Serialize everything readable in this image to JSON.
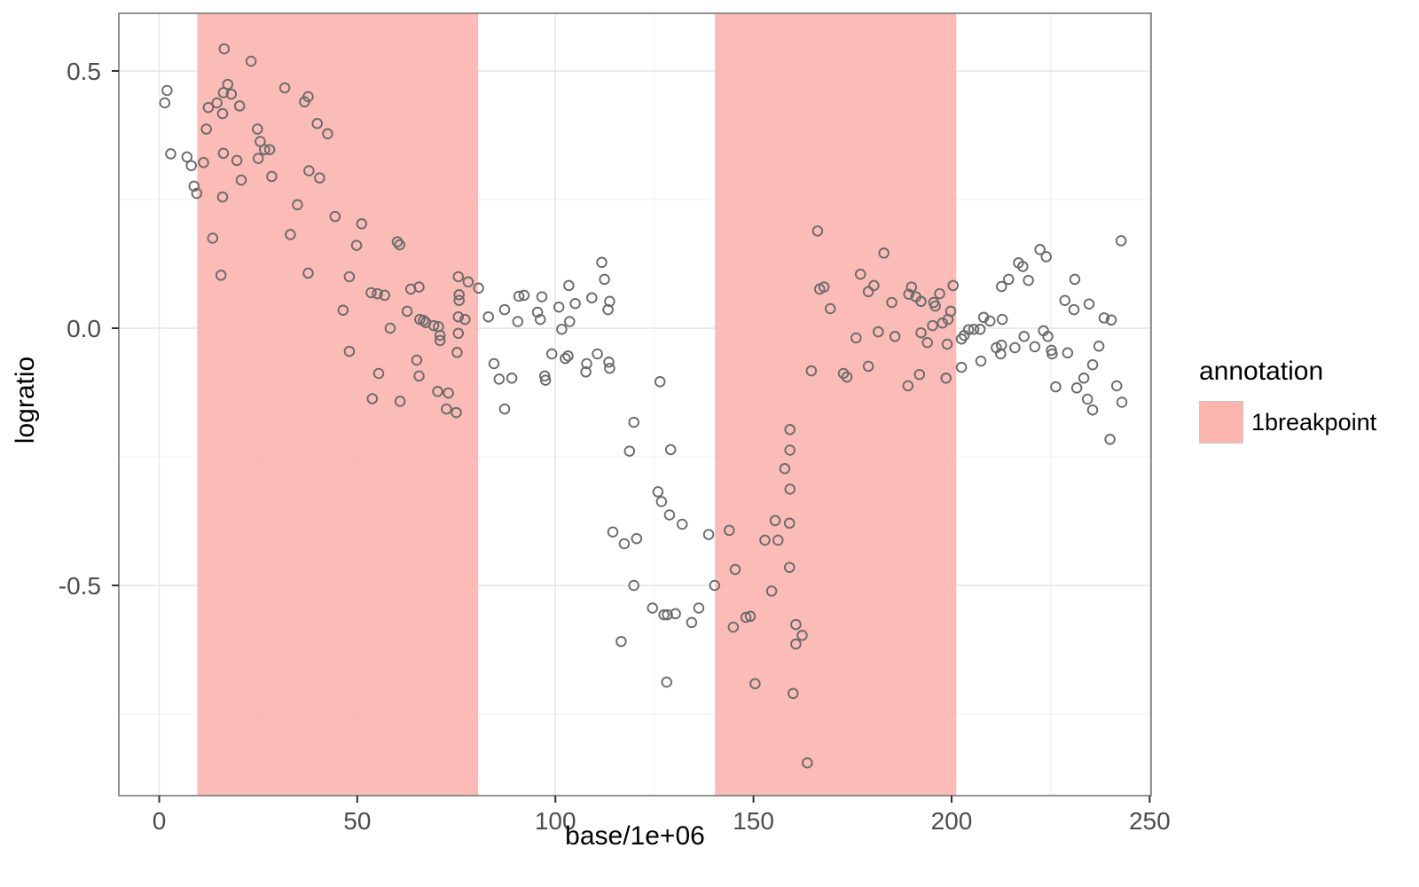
{
  "chart_data": {
    "type": "scatter",
    "title": "",
    "xlabel": "base/1e+06",
    "ylabel": "logratio",
    "xlim": [
      -10.2,
      250.4
    ],
    "ylim": [
      -0.909,
      0.612
    ],
    "grid": "on",
    "x_ticks": [
      {
        "v": 0,
        "label": "0"
      },
      {
        "v": 50,
        "label": "50"
      },
      {
        "v": 100,
        "label": "100"
      },
      {
        "v": 150,
        "label": "150"
      },
      {
        "v": 200,
        "label": "200"
      },
      {
        "v": 250,
        "label": "250"
      }
    ],
    "x_minor_ticks": [
      25,
      75,
      125,
      175,
      225
    ],
    "y_ticks": [
      {
        "v": 0.5,
        "label": "0.5"
      },
      {
        "v": 0.0,
        "label": "0.0"
      },
      {
        "v": -0.5,
        "label": "-0.5"
      }
    ],
    "y_minor_ticks": [
      0.25,
      -0.25,
      -0.75
    ],
    "legend": {
      "position": "right",
      "title": "annotation",
      "items": [
        {
          "label": "1breakpoint",
          "color": "#fbb4ae"
        }
      ]
    },
    "bands": [
      {
        "from": 9.6,
        "to": 80.5,
        "annotation": "1breakpoint"
      },
      {
        "from": 140.3,
        "to": 201.2,
        "annotation": "1breakpoint"
      }
    ],
    "colors": {
      "band_fill": "#fbb4ae",
      "point_stroke": "#6b6b6b",
      "grid_major": "#e6e6e6",
      "grid_minor": "#f3f3f3",
      "panel_border": "#787878",
      "tick_mark": "#333333",
      "tick_label": "#4d4d4d",
      "axis_title": "#000000"
    },
    "points": [
      [
        16.4,
        0.543
      ],
      [
        23.2,
        0.519
      ],
      [
        2.0,
        0.462
      ],
      [
        1.4,
        0.438
      ],
      [
        17.3,
        0.474
      ],
      [
        16.2,
        0.458
      ],
      [
        18.2,
        0.455
      ],
      [
        14.6,
        0.438
      ],
      [
        12.4,
        0.429
      ],
      [
        20.3,
        0.432
      ],
      [
        16.0,
        0.417
      ],
      [
        31.7,
        0.467
      ],
      [
        36.7,
        0.44
      ],
      [
        37.6,
        0.45
      ],
      [
        39.9,
        0.398
      ],
      [
        42.5,
        0.378
      ],
      [
        11.9,
        0.387
      ],
      [
        24.8,
        0.387
      ],
      [
        25.5,
        0.363
      ],
      [
        26.6,
        0.347
      ],
      [
        27.9,
        0.347
      ],
      [
        25.0,
        0.33
      ],
      [
        16.2,
        0.34
      ],
      [
        19.6,
        0.326
      ],
      [
        2.9,
        0.339
      ],
      [
        7.0,
        0.333
      ],
      [
        8.1,
        0.316
      ],
      [
        11.2,
        0.322
      ],
      [
        8.8,
        0.276
      ],
      [
        9.5,
        0.262
      ],
      [
        20.7,
        0.288
      ],
      [
        16.0,
        0.255
      ],
      [
        28.4,
        0.295
      ],
      [
        37.8,
        0.306
      ],
      [
        40.5,
        0.292
      ],
      [
        34.9,
        0.24
      ],
      [
        44.4,
        0.217
      ],
      [
        51.1,
        0.203
      ],
      [
        13.5,
        0.175
      ],
      [
        33.1,
        0.182
      ],
      [
        49.8,
        0.161
      ],
      [
        37.6,
        0.107
      ],
      [
        15.6,
        0.103
      ],
      [
        48.0,
        0.1
      ],
      [
        53.5,
        0.069
      ],
      [
        46.4,
        0.035
      ],
      [
        48.0,
        -0.045
      ],
      [
        53.8,
        -0.137
      ],
      [
        55.1,
        0.067
      ],
      [
        56.9,
        0.064
      ],
      [
        63.5,
        0.076
      ],
      [
        65.6,
        0.08
      ],
      [
        75.5,
        0.1
      ],
      [
        78.0,
        0.09
      ],
      [
        80.6,
        0.078
      ],
      [
        75.7,
        0.065
      ],
      [
        75.7,
        0.054
      ],
      [
        62.6,
        0.033
      ],
      [
        65.8,
        0.017
      ],
      [
        66.7,
        0.015
      ],
      [
        67.3,
        0.011
      ],
      [
        69.3,
        0.005
      ],
      [
        70.5,
        0.003
      ],
      [
        58.3,
        0.0
      ],
      [
        70.9,
        -0.014
      ],
      [
        70.9,
        -0.024
      ],
      [
        75.5,
        0.022
      ],
      [
        77.2,
        0.017
      ],
      [
        75.5,
        -0.01
      ],
      [
        75.2,
        -0.047
      ],
      [
        65.0,
        -0.062
      ],
      [
        65.6,
        -0.093
      ],
      [
        55.4,
        -0.088
      ],
      [
        60.8,
        -0.142
      ],
      [
        70.3,
        -0.123
      ],
      [
        73.0,
        -0.126
      ],
      [
        72.5,
        -0.157
      ],
      [
        75.0,
        -0.164
      ],
      [
        83.1,
        0.022
      ],
      [
        87.2,
        0.036
      ],
      [
        90.8,
        0.062
      ],
      [
        92.1,
        0.064
      ],
      [
        90.5,
        0.013
      ],
      [
        96.6,
        0.061
      ],
      [
        95.5,
        0.031
      ],
      [
        96.2,
        0.017
      ],
      [
        100.9,
        0.041
      ],
      [
        103.4,
        0.083
      ],
      [
        105.0,
        0.048
      ],
      [
        103.6,
        0.013
      ],
      [
        101.6,
        -0.002
      ],
      [
        109.2,
        0.059
      ],
      [
        112.4,
        0.095
      ],
      [
        113.7,
        0.052
      ],
      [
        113.3,
        0.036
      ],
      [
        99.1,
        -0.05
      ],
      [
        102.5,
        -0.059
      ],
      [
        103.2,
        -0.054
      ],
      [
        107.9,
        -0.069
      ],
      [
        107.7,
        -0.085
      ],
      [
        110.6,
        -0.05
      ],
      [
        113.5,
        -0.066
      ],
      [
        113.7,
        -0.078
      ],
      [
        84.5,
        -0.069
      ],
      [
        85.8,
        -0.099
      ],
      [
        89.0,
        -0.097
      ],
      [
        97.3,
        -0.093
      ],
      [
        97.5,
        -0.101
      ],
      [
        87.2,
        -0.157
      ],
      [
        119.8,
        -0.183
      ],
      [
        118.7,
        -0.239
      ],
      [
        60.1,
        0.168
      ],
      [
        60.7,
        0.162
      ],
      [
        111.7,
        0.128
      ],
      [
        166.2,
        0.189
      ],
      [
        182.9,
        0.146
      ],
      [
        177.0,
        0.105
      ],
      [
        242.8,
        0.17
      ],
      [
        222.3,
        0.153
      ],
      [
        223.9,
        0.139
      ],
      [
        216.9,
        0.127
      ],
      [
        218.0,
        0.12
      ],
      [
        166.7,
        0.076
      ],
      [
        167.8,
        0.08
      ],
      [
        169.4,
        0.038
      ],
      [
        179.0,
        0.071
      ],
      [
        180.4,
        0.083
      ],
      [
        184.9,
        0.05
      ],
      [
        175.9,
        -0.019
      ],
      [
        181.5,
        -0.007
      ],
      [
        185.7,
        -0.016
      ],
      [
        164.6,
        -0.083
      ],
      [
        172.7,
        -0.088
      ],
      [
        173.6,
        -0.095
      ],
      [
        179.0,
        -0.074
      ],
      [
        126.4,
        -0.104
      ],
      [
        129.1,
        -0.236
      ],
      [
        125.9,
        -0.318
      ],
      [
        126.8,
        -0.337
      ],
      [
        128.8,
        -0.363
      ],
      [
        132.0,
        -0.381
      ],
      [
        138.7,
        -0.401
      ],
      [
        143.9,
        -0.393
      ],
      [
        155.5,
        -0.374
      ],
      [
        159.1,
        -0.379
      ],
      [
        159.2,
        -0.197
      ],
      [
        159.2,
        -0.237
      ],
      [
        157.9,
        -0.273
      ],
      [
        159.2,
        -0.313
      ],
      [
        189.9,
        0.08
      ],
      [
        189.2,
        0.066
      ],
      [
        191.0,
        0.061
      ],
      [
        192.3,
        0.052
      ],
      [
        195.5,
        0.05
      ],
      [
        195.9,
        0.043
      ],
      [
        197.0,
        0.067
      ],
      [
        200.4,
        0.083
      ],
      [
        199.8,
        0.033
      ],
      [
        197.7,
        0.01
      ],
      [
        199.1,
        0.017
      ],
      [
        195.2,
        0.005
      ],
      [
        192.3,
        -0.009
      ],
      [
        193.9,
        -0.028
      ],
      [
        198.9,
        -0.031
      ],
      [
        191.9,
        -0.09
      ],
      [
        189.0,
        -0.112
      ],
      [
        198.6,
        -0.097
      ],
      [
        202.5,
        -0.021
      ],
      [
        203.2,
        -0.014
      ],
      [
        204.3,
        -0.003
      ],
      [
        205.6,
        -0.002
      ],
      [
        207.2,
        -0.002
      ],
      [
        202.5,
        -0.076
      ],
      [
        207.4,
        -0.064
      ],
      [
        208.1,
        0.021
      ],
      [
        209.7,
        0.014
      ],
      [
        212.8,
        0.017
      ],
      [
        212.6,
        0.081
      ],
      [
        214.4,
        0.095
      ],
      [
        219.4,
        0.093
      ],
      [
        211.3,
        -0.038
      ],
      [
        212.6,
        -0.033
      ],
      [
        212.4,
        -0.05
      ],
      [
        216.0,
        -0.038
      ],
      [
        218.3,
        -0.016
      ],
      [
        221.0,
        -0.036
      ],
      [
        223.2,
        -0.005
      ],
      [
        224.3,
        -0.016
      ],
      [
        225.2,
        -0.043
      ],
      [
        225.4,
        -0.05
      ],
      [
        229.3,
        -0.048
      ],
      [
        226.3,
        -0.114
      ],
      [
        231.1,
        0.095
      ],
      [
        228.6,
        0.054
      ],
      [
        230.9,
        0.036
      ],
      [
        234.7,
        0.047
      ],
      [
        238.5,
        0.02
      ],
      [
        240.3,
        0.016
      ],
      [
        237.2,
        -0.035
      ],
      [
        235.6,
        -0.071
      ],
      [
        233.4,
        -0.097
      ],
      [
        234.3,
        -0.138
      ],
      [
        235.6,
        -0.159
      ],
      [
        231.6,
        -0.116
      ],
      [
        241.7,
        -0.112
      ],
      [
        243.0,
        -0.144
      ],
      [
        240.0,
        -0.216
      ],
      [
        114.5,
        -0.396
      ],
      [
        117.4,
        -0.419
      ],
      [
        120.5,
        -0.409
      ],
      [
        119.8,
        -0.5
      ],
      [
        116.6,
        -0.609
      ],
      [
        152.9,
        -0.412
      ],
      [
        156.2,
        -0.412
      ],
      [
        145.4,
        -0.469
      ],
      [
        159.1,
        -0.465
      ],
      [
        140.2,
        -0.5
      ],
      [
        154.6,
        -0.511
      ],
      [
        124.5,
        -0.544
      ],
      [
        127.4,
        -0.557
      ],
      [
        128.3,
        -0.557
      ],
      [
        130.3,
        -0.555
      ],
      [
        136.2,
        -0.544
      ],
      [
        134.4,
        -0.572
      ],
      [
        128.1,
        -0.688
      ],
      [
        150.4,
        -0.691
      ],
      [
        160.0,
        -0.71
      ],
      [
        148.1,
        -0.562
      ],
      [
        149.2,
        -0.56
      ],
      [
        144.9,
        -0.581
      ],
      [
        160.7,
        -0.576
      ],
      [
        162.3,
        -0.597
      ],
      [
        160.7,
        -0.614
      ],
      [
        163.6,
        -0.845
      ]
    ]
  }
}
